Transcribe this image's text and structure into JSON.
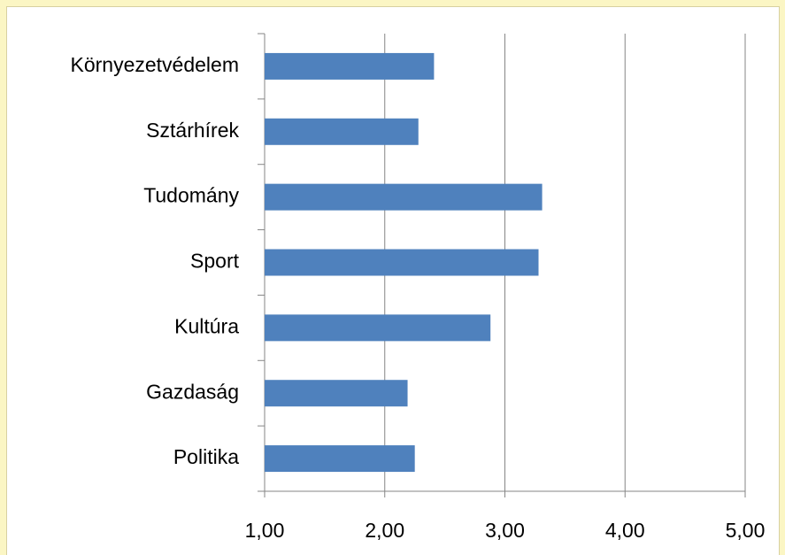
{
  "chart_data": {
    "type": "barh",
    "categories": [
      "Környezetvédelem",
      "Sztárhírek",
      "Tudomány",
      "Sport",
      "Kultúra",
      "Gazdaság",
      "Politika"
    ],
    "values": [
      2.41,
      2.28,
      3.31,
      3.28,
      2.88,
      2.19,
      2.25
    ],
    "color": "#4f81bd",
    "xlim": [
      1,
      5
    ],
    "xticks": [
      {
        "value": 1,
        "label": "1,00"
      },
      {
        "value": 2,
        "label": "2,00"
      },
      {
        "value": 3,
        "label": "3,00"
      },
      {
        "value": 4,
        "label": "4,00"
      },
      {
        "value": 5,
        "label": "5,00"
      }
    ],
    "grid": true
  }
}
